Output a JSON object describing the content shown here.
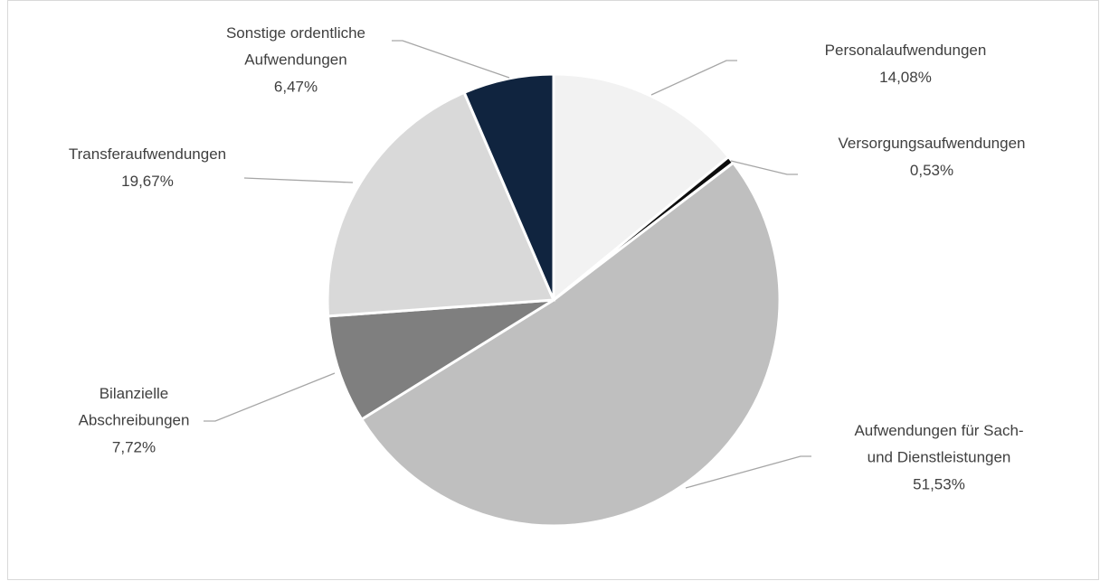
{
  "chart_data": {
    "type": "pie",
    "categories": [
      "Personalaufwendungen",
      "Versorgungsaufwendungen",
      "Aufwendungen für Sach- und Dienstleistungen",
      "Bilanzielle Abschreibungen",
      "Transferaufwendungen",
      "Sonstige ordentliche Aufwendungen"
    ],
    "values": [
      14.08,
      0.53,
      51.53,
      7.72,
      19.67,
      6.47
    ],
    "value_labels": [
      "14,08%",
      "0,53%",
      "51,53%",
      "7,72%",
      "19,67%",
      "6,47%"
    ],
    "colors": [
      "#f2f2f2",
      "#0d0d0d",
      "#bfbfbf",
      "#7f7f7f",
      "#d9d9d9",
      "#10243f"
    ]
  }
}
